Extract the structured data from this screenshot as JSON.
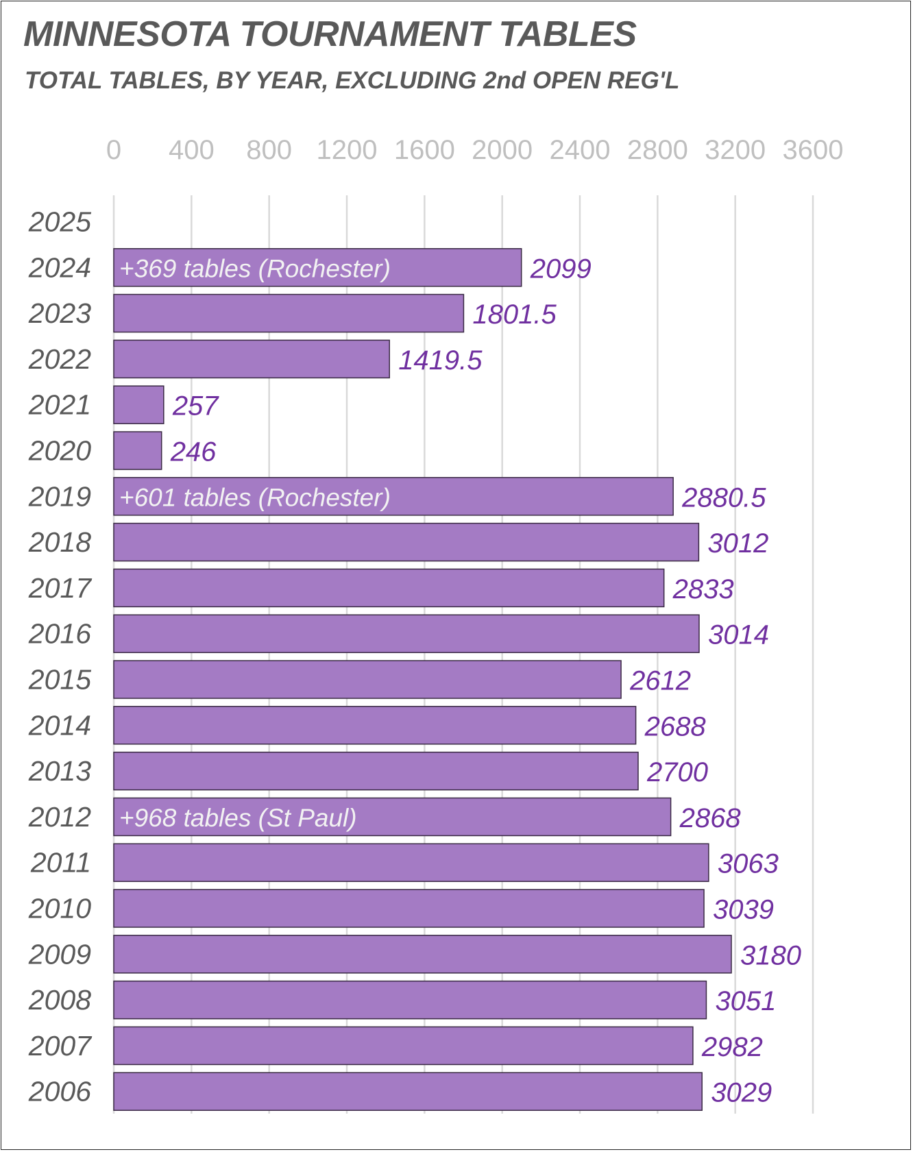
{
  "chart_data": {
    "type": "bar",
    "orientation": "horizontal",
    "title": "MINNESOTA TOURNAMENT TABLES",
    "subtitle": "TOTAL TABLES, BY YEAR, EXCLUDING 2nd OPEN REG'L",
    "xlim": [
      0,
      3600
    ],
    "x_ticks": [
      "0",
      "400",
      "800",
      "1200",
      "1600",
      "2000",
      "2400",
      "2800",
      "3200",
      "3600"
    ],
    "x_tick_values": [
      0,
      400,
      800,
      1200,
      1600,
      2000,
      2400,
      2800,
      3200,
      3600
    ],
    "grid": true,
    "bar_color": "#a47bc4",
    "bar_border_color": "#3a2a44",
    "value_label_color": "#7030a0",
    "categories": [
      "2025",
      "2024",
      "2023",
      "2022",
      "2021",
      "2020",
      "2019",
      "2018",
      "2017",
      "2016",
      "2015",
      "2014",
      "2013",
      "2012",
      "2011",
      "2010",
      "2009",
      "2008",
      "2007",
      "2006"
    ],
    "values": [
      null,
      2099,
      1801.5,
      1419.5,
      257,
      246,
      2880.5,
      3012,
      2833,
      3014,
      2612,
      2688,
      2700,
      2868,
      3063,
      3039,
      3180,
      3051,
      2982,
      3029
    ],
    "value_labels": [
      "",
      "2099",
      "1801.5",
      "1419.5",
      "257",
      "246",
      "2880.5",
      "3012",
      "2833",
      "3014",
      "2612",
      "2688",
      "2700",
      "2868",
      "3063",
      "3039",
      "3180",
      "3051",
      "2982",
      "3029"
    ],
    "annotations": [
      {
        "category": "2024",
        "text": "+369 tables (Rochester)"
      },
      {
        "category": "2019",
        "text": "+601 tables (Rochester)"
      },
      {
        "category": "2012",
        "text": "+968 tables (St Paul)"
      }
    ]
  }
}
